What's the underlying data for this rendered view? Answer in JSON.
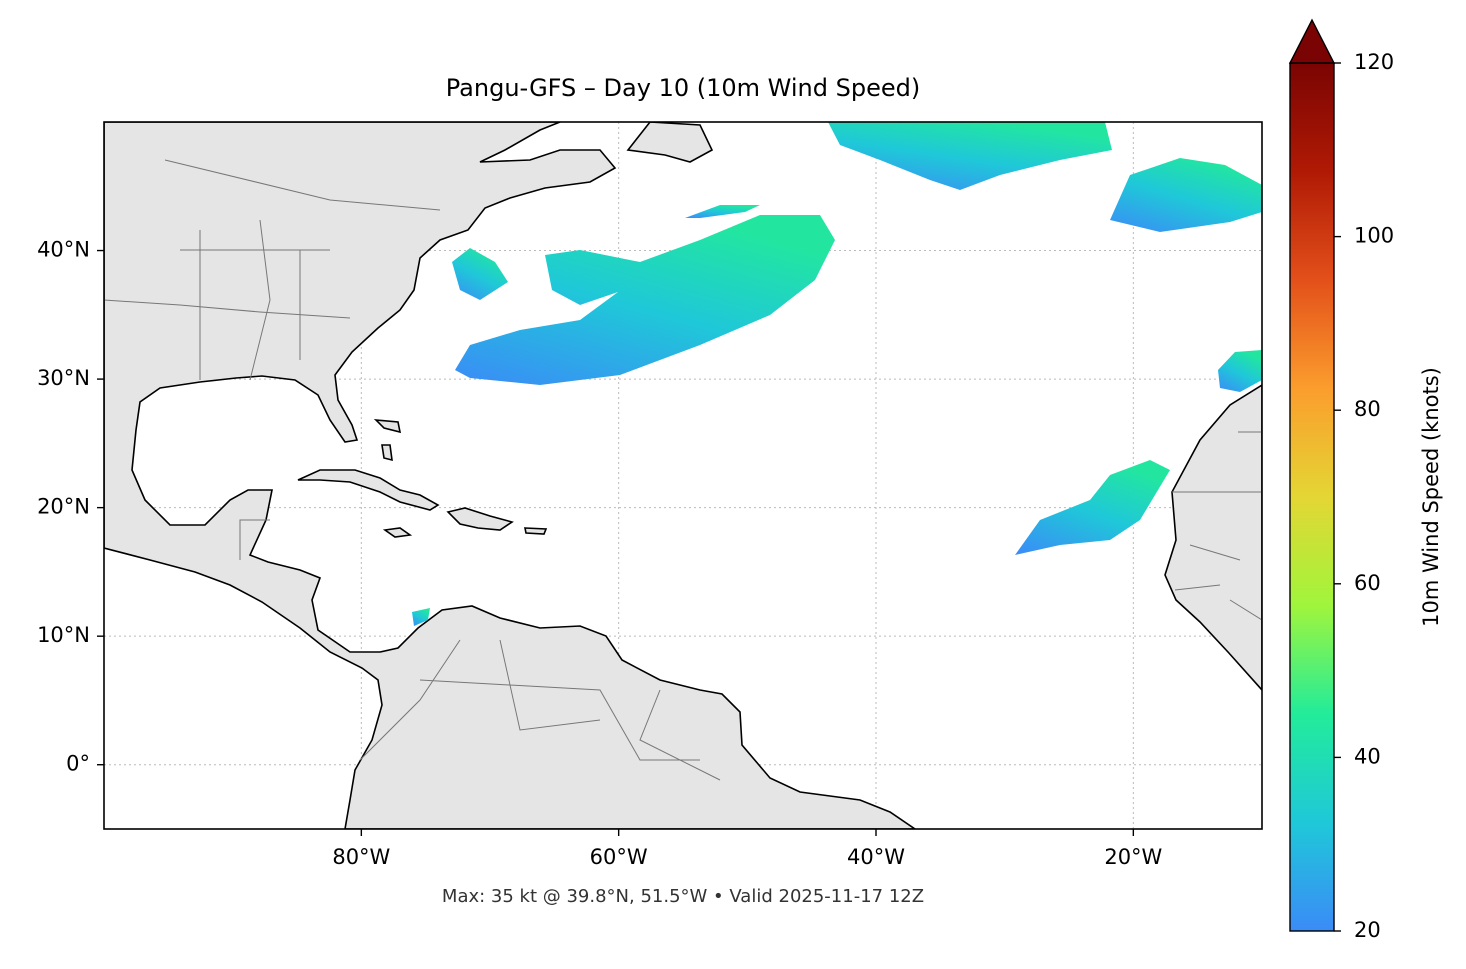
{
  "chart_data": {
    "type": "map",
    "title": "Pangu-GFS – Day 10 (10m Wind Speed)",
    "annotation": "Max: 35 kt @ 39.8°N, 51.5°W • Valid 2025-11-17 12Z",
    "xlim": [
      -100,
      -10
    ],
    "ylim": [
      -5,
      50
    ],
    "xticks": [
      {
        "value": -80,
        "label": "80°W"
      },
      {
        "value": -60,
        "label": "60°W"
      },
      {
        "value": -40,
        "label": "40°W"
      },
      {
        "value": -20,
        "label": "20°W"
      }
    ],
    "yticks": [
      {
        "value": 0,
        "label": "0°"
      },
      {
        "value": 10,
        "label": "10°N"
      },
      {
        "value": 20,
        "label": "20°N"
      },
      {
        "value": 30,
        "label": "30°N"
      },
      {
        "value": 40,
        "label": "40°N"
      }
    ],
    "grid": true,
    "colorbar": {
      "label": "10m Wind Speed (knots)",
      "lim": [
        20,
        120
      ],
      "ticks": [
        20,
        40,
        60,
        80,
        100,
        120
      ],
      "colors": [
        "#3b8bf7",
        "#1fc8d8",
        "#22ec9a",
        "#a0f53c",
        "#e4d634",
        "#fb9d2d",
        "#e3501a",
        "#b01a05",
        "#7a0403"
      ]
    }
  }
}
